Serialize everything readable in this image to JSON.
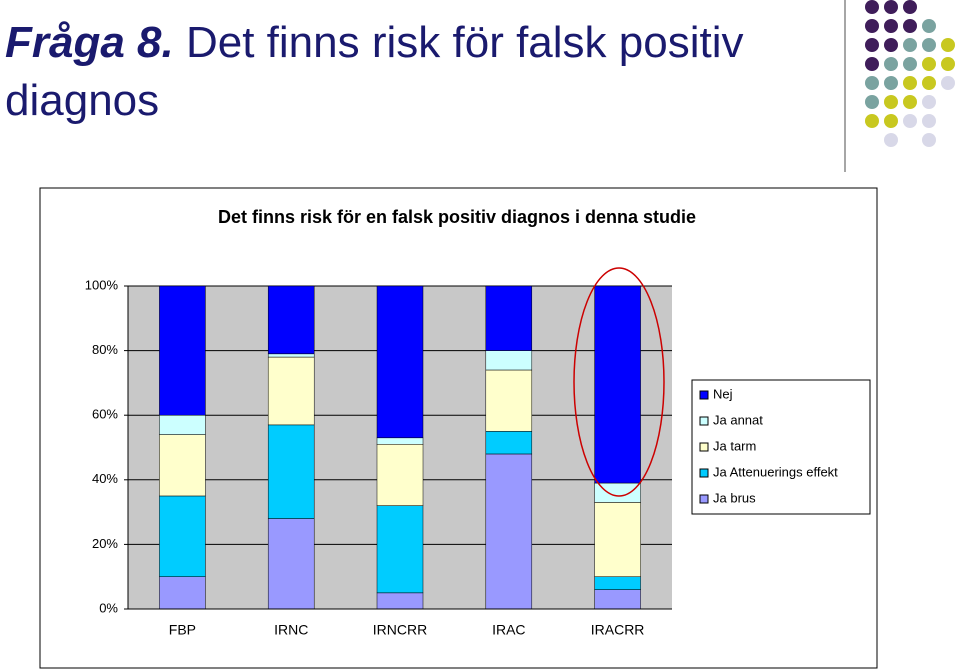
{
  "slide": {
    "label": "Fråga 8.",
    "title": "Det finns risk för falsk positiv diagnos"
  },
  "chart_data": {
    "type": "stacked_bar",
    "title": "Det finns risk för en falsk positiv diagnos i denna studie",
    "categories": [
      "FBP",
      "IRNC",
      "IRNCRR",
      "IRAC",
      "IRACRR"
    ],
    "series": [
      {
        "name": "Ja brus",
        "color": "#9999ff",
        "values": [
          10,
          28,
          5,
          48,
          6
        ]
      },
      {
        "name": "Ja Attenuerings effekt",
        "color": "#00ccff",
        "values": [
          25,
          29,
          27,
          7,
          4
        ]
      },
      {
        "name": "Ja tarm",
        "color": "#ffffcc",
        "values": [
          19,
          21,
          19,
          19,
          23
        ]
      },
      {
        "name": "Ja annat",
        "color": "#ccffff",
        "values": [
          6,
          1,
          2,
          6,
          6
        ]
      },
      {
        "name": "Nej",
        "color": "#0000ff",
        "values": [
          40,
          21,
          47,
          20,
          61
        ]
      }
    ],
    "ylim": [
      0,
      100
    ],
    "yticks": [
      {
        "value": 0,
        "label": "0%"
      },
      {
        "value": 20,
        "label": "20%"
      },
      {
        "value": 40,
        "label": "40%"
      },
      {
        "value": 60,
        "label": "60%"
      },
      {
        "value": 80,
        "label": "80%"
      },
      {
        "value": 100,
        "label": "100%"
      }
    ],
    "grid": true,
    "legend": "right"
  }
}
